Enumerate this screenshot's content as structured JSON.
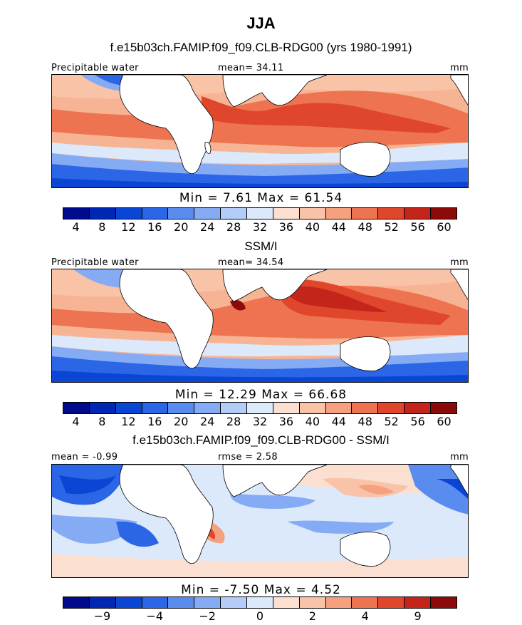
{
  "title": "JJA",
  "panels": [
    {
      "heading": "f.e15b03ch.FAMIP.f09_f09.CLB-RDG00 (yrs 1980-1991)",
      "left_label": "Precipitable water",
      "center_label": "mean=  34.11",
      "right_label": "mm",
      "minmax": "Min =   7.61  Max =   61.54",
      "ticks": [
        "4",
        "8",
        "12",
        "16",
        "20",
        "24",
        "28",
        "32",
        "36",
        "40",
        "44",
        "48",
        "52",
        "56",
        "60"
      ],
      "colors": [
        "#000a8c",
        "#0026b4",
        "#0a45d4",
        "#2b66e6",
        "#5a8cf0",
        "#86abf5",
        "#b3cdf8",
        "#dce9fb",
        "#fbe0d2",
        "#f9c3a8",
        "#f5a07e",
        "#ee7451",
        "#e0462b",
        "#c4251b",
        "#8c0a0a"
      ]
    },
    {
      "heading": "SSM/I",
      "left_label": "Precipitable water",
      "center_label": "mean=  34.54",
      "right_label": "mm",
      "minmax": "Min =   12.29  Max =   66.68",
      "ticks": [
        "4",
        "8",
        "12",
        "16",
        "20",
        "24",
        "28",
        "32",
        "36",
        "40",
        "44",
        "48",
        "52",
        "56",
        "60"
      ],
      "colors": [
        "#000a8c",
        "#0026b4",
        "#0a45d4",
        "#2b66e6",
        "#5a8cf0",
        "#86abf5",
        "#b3cdf8",
        "#dce9fb",
        "#fbe0d2",
        "#f9c3a8",
        "#f5a07e",
        "#ee7451",
        "#e0462b",
        "#c4251b",
        "#8c0a0a"
      ]
    },
    {
      "heading": "f.e15b03ch.FAMIP.f09_f09.CLB-RDG00 - SSM/I",
      "left_label": "mean =   -0.99",
      "center_label": "rmse =    2.58",
      "right_label": "mm",
      "minmax": "Min =  -7.50  Max =    4.52",
      "ticks": [
        "−9",
        "−4",
        "−2",
        "0",
        "2",
        "4",
        "9"
      ],
      "colors": [
        "#000a8c",
        "#0026b4",
        "#0a45d4",
        "#2b66e6",
        "#5a8cf0",
        "#86abf5",
        "#b3cdf8",
        "#dce9fb",
        "#fbe0d2",
        "#f9c3a8",
        "#f5a07e",
        "#ee7451",
        "#e0462b",
        "#c4251b",
        "#8c0a0a"
      ]
    }
  ]
}
